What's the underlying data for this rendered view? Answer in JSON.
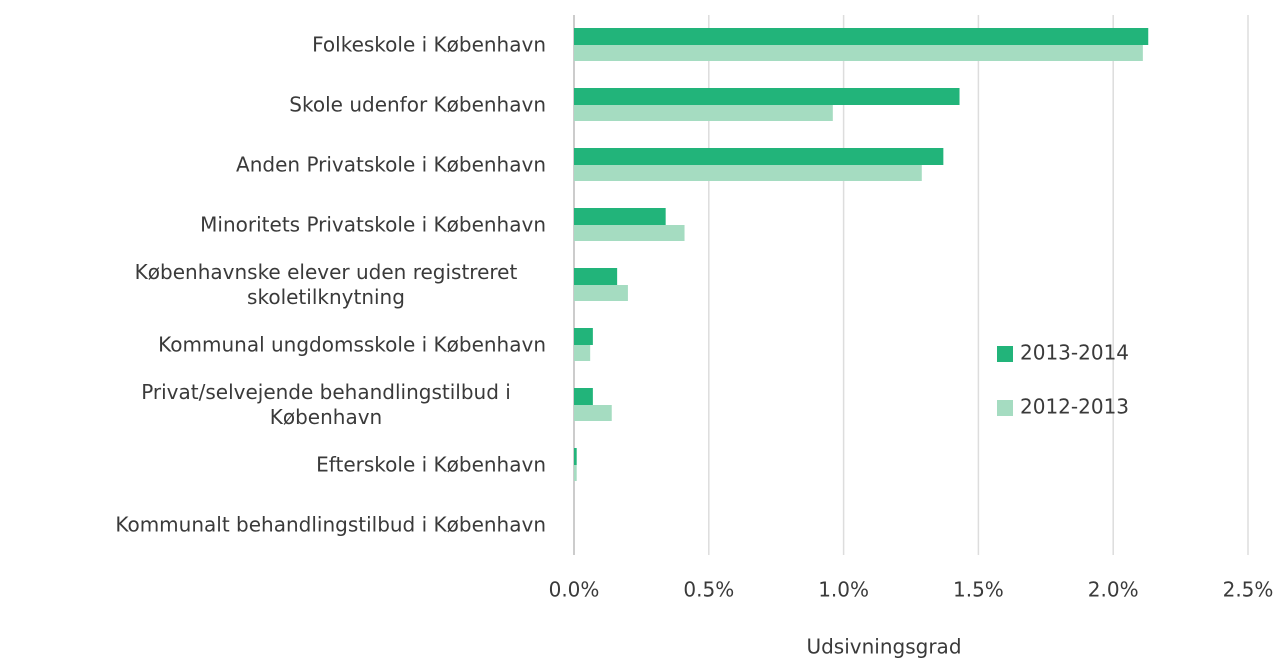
{
  "chart_data": {
    "type": "bar",
    "orientation": "horizontal",
    "categories": [
      "Folkeskole i København",
      "Skole udenfor København",
      "Anden Privatskole i København",
      "Minoritets Privatskole i København",
      "Københavnske elever uden registreret skoletilknytning",
      "Kommunal ungdomsskole i København",
      "Privat/selvejende behandlingstilbud i København",
      "Efterskole i København",
      "Kommunalt behandlingstilbud i København"
    ],
    "series": [
      {
        "name": "2013-2014",
        "color": "#22b47a",
        "values": [
          2.13,
          1.43,
          1.37,
          0.34,
          0.16,
          0.07,
          0.07,
          0.01,
          0
        ]
      },
      {
        "name": "2012-2013",
        "color": "#a5dcc1",
        "values": [
          2.11,
          0.96,
          1.29,
          0.41,
          0.2,
          0.06,
          0.14,
          0.01,
          0
        ]
      }
    ],
    "xlabel": "Udsivningsgrad",
    "xlim": [
      0,
      2.5
    ],
    "xticks": [
      {
        "value": 0,
        "label": "0.0%"
      },
      {
        "value": 0.5,
        "label": "0.5%"
      },
      {
        "value": 1,
        "label": "1.0%"
      },
      {
        "value": 1.5,
        "label": "1.5%"
      },
      {
        "value": 2,
        "label": "2.0%"
      },
      {
        "value": 2.5,
        "label": "2.5%"
      }
    ],
    "grid": true,
    "legend": "right"
  }
}
